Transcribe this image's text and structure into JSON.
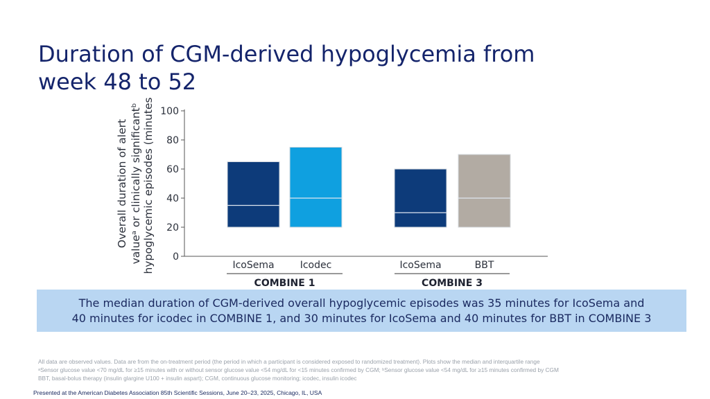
{
  "slide": {
    "title_line1": "Duration of CGM-derived hypoglycemia from",
    "title_line2": "week 48 to 52",
    "summary_line1": "The median duration of CGM-derived overall hypoglycemic episodes was 35 minutes for IcoSema and",
    "summary_line2": "40 minutes for icodec in COMBINE 1, and 30 minutes for IcoSema and 40 minutes for BBT in COMBINE 3",
    "footnote_line1": "All data are observed values. Data are from the on-treatment period (the period in which a participant is considered exposed to randomized treatment). Plots show the median and interquartile range",
    "footnote_line2": "ᵃSensor glucose value <70 mg/dL for ≥15 minutes with or without sensor glucose value <54 mg/dL for <15 minutes confirmed by CGM; ᵇSensor glucose value <54 mg/dL for ≥15 minutes confirmed by CGM",
    "footnote_line3": "BBT, basal-bolus therapy (insulin glargine U100 + insulin aspart); CGM, continuous glucose monitoring; icodec, insulin icodec",
    "presented": "Presented at the American Diabetes Association 85th Scientific Sessions, June 20–23, 2025, Chicago, IL, USA"
  },
  "chart_data": {
    "type": "box",
    "ylabel_line1": "Overall duration of alert",
    "ylabel_line2": "valueᵃ or clinically significantᵇ",
    "ylabel_line3": "hypoglycemic episodes (minutes)",
    "ylim": [
      0,
      100
    ],
    "yticks": [
      0,
      20,
      40,
      60,
      80,
      100
    ],
    "grid": false,
    "groups": [
      {
        "name": "COMBINE 1",
        "boxes": [
          {
            "label": "IcoSema",
            "q1": 20,
            "median": 35,
            "q3": 65,
            "color": "#0d3b7a"
          },
          {
            "label": "Icodec",
            "q1": 20,
            "median": 40,
            "q3": 75,
            "color": "#0fa0e0"
          }
        ]
      },
      {
        "name": "COMBINE 3",
        "boxes": [
          {
            "label": "IcoSema",
            "q1": 20,
            "median": 30,
            "q3": 60,
            "color": "#0d3b7a"
          },
          {
            "label": "BBT",
            "q1": 20,
            "median": 40,
            "q3": 70,
            "color": "#b2aba3"
          }
        ]
      }
    ]
  }
}
